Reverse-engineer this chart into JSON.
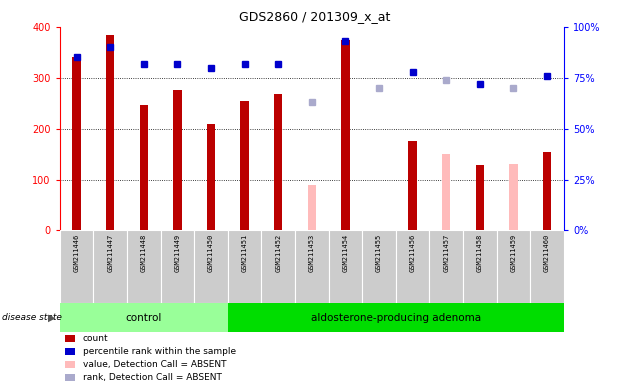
{
  "title": "GDS2860 / 201309_x_at",
  "samples": [
    "GSM211446",
    "GSM211447",
    "GSM211448",
    "GSM211449",
    "GSM211450",
    "GSM211451",
    "GSM211452",
    "GSM211453",
    "GSM211454",
    "GSM211455",
    "GSM211456",
    "GSM211457",
    "GSM211458",
    "GSM211459",
    "GSM211460"
  ],
  "count_values": [
    340,
    385,
    247,
    275,
    210,
    255,
    268,
    null,
    375,
    null,
    175,
    null,
    128,
    null,
    155
  ],
  "count_absent": [
    null,
    null,
    null,
    null,
    null,
    null,
    null,
    90,
    null,
    null,
    null,
    150,
    null,
    130,
    null
  ],
  "percentile_values": [
    85,
    90,
    82,
    82,
    80,
    82,
    82,
    null,
    93,
    null,
    78,
    null,
    72,
    null,
    76
  ],
  "percentile_absent": [
    null,
    null,
    null,
    null,
    null,
    null,
    null,
    63,
    null,
    70,
    null,
    74,
    null,
    70,
    null
  ],
  "control_indices": [
    0,
    1,
    2,
    3,
    4
  ],
  "adenoma_indices": [
    5,
    6,
    7,
    8,
    9,
    10,
    11,
    12,
    13,
    14
  ],
  "ylim_left": [
    0,
    400
  ],
  "ylim_right": [
    0,
    100
  ],
  "yticks_left": [
    0,
    100,
    200,
    300,
    400
  ],
  "yticks_right": [
    0,
    25,
    50,
    75,
    100
  ],
  "bar_color": "#bb0000",
  "bar_absent_color": "#ffbbbb",
  "dot_color": "#0000cc",
  "dot_absent_color": "#aaaacc",
  "label_bg": "#cccccc",
  "control_bg": "#99ff99",
  "adenoma_bg": "#00dd00",
  "disease_state_label": "disease state",
  "control_label": "control",
  "adenoma_label": "aldosterone-producing adenoma",
  "legend_items": [
    {
      "label": "count",
      "color": "#bb0000"
    },
    {
      "label": "percentile rank within the sample",
      "color": "#0000cc"
    },
    {
      "label": "value, Detection Call = ABSENT",
      "color": "#ffbbbb"
    },
    {
      "label": "rank, Detection Call = ABSENT",
      "color": "#aaaacc"
    }
  ]
}
